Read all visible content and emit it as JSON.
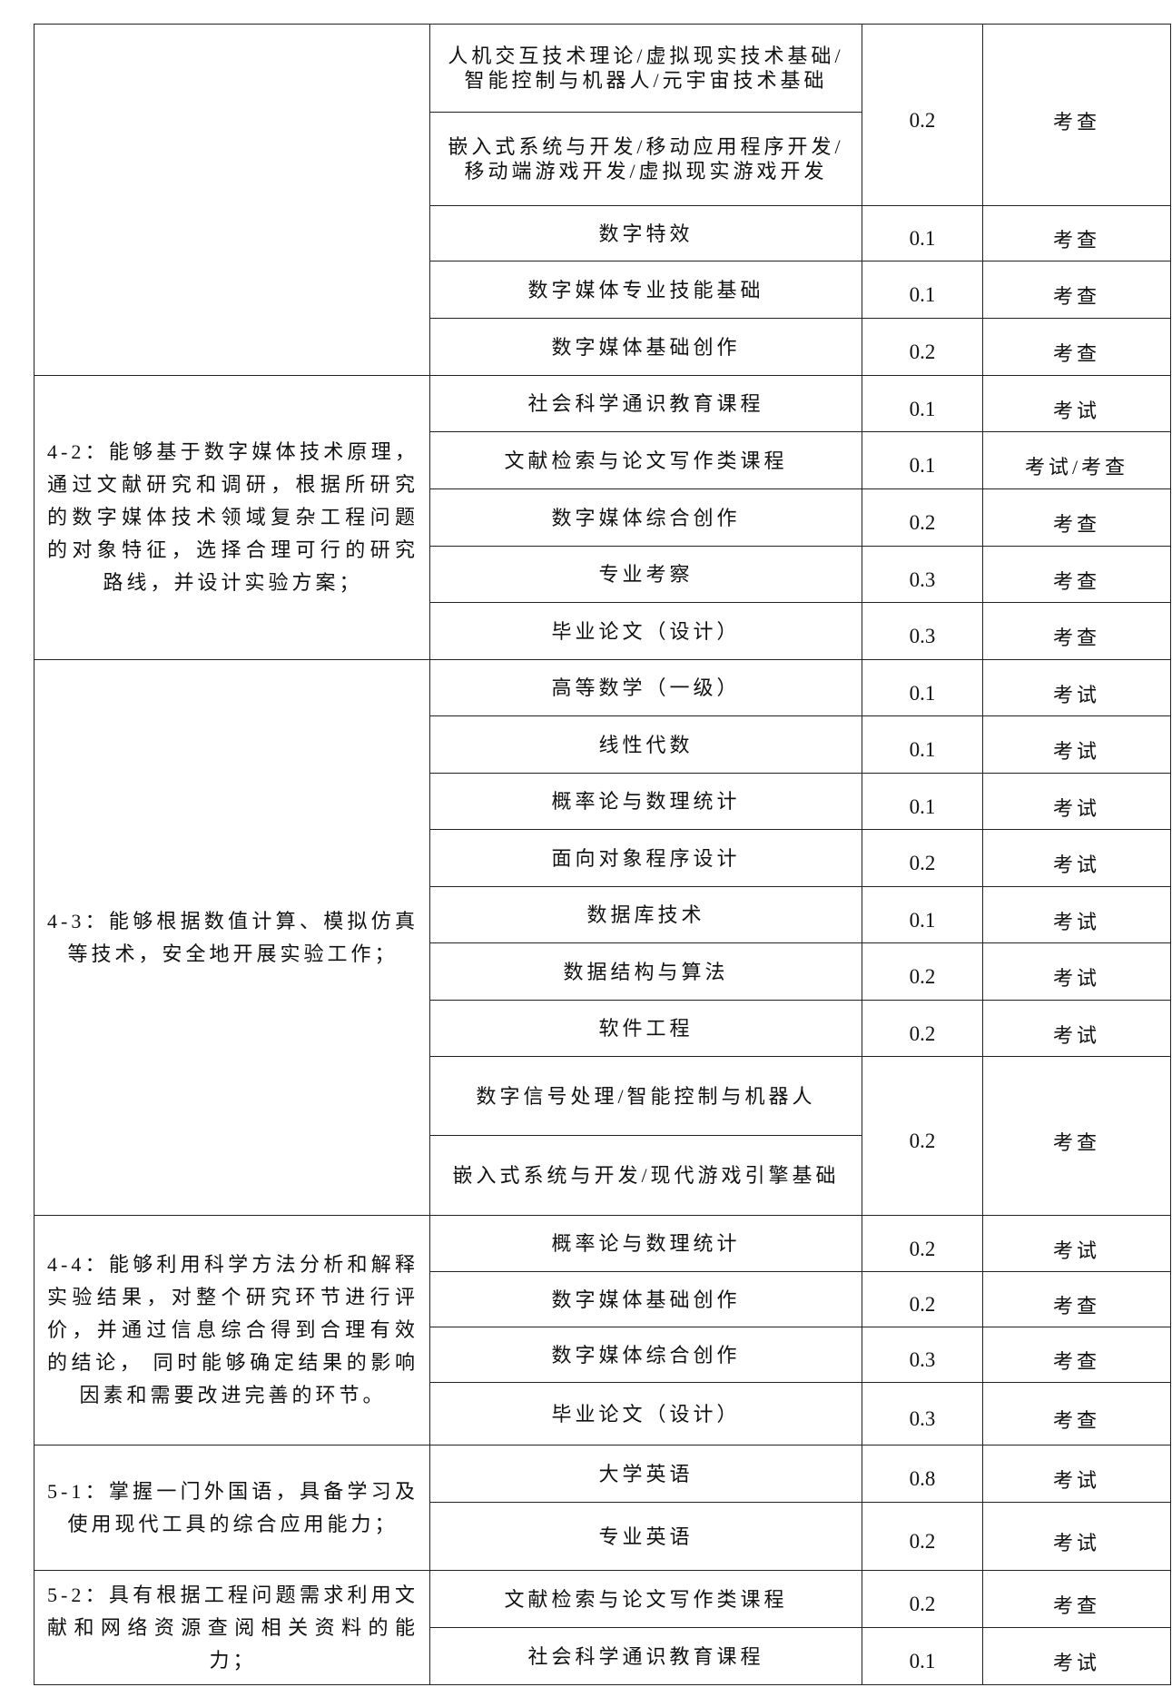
{
  "groups": [
    {
      "indicator": "",
      "courses": [
        {
          "names": [
            "人机交互技术理论/虚拟现实技术基础/智能控制与机器人/元宇宙技术基础",
            "嵌入式系统与开发/移动应用程序开发/移动端游戏开发/虚拟现实游戏开发"
          ],
          "weight": "0.2",
          "method": "考查"
        },
        {
          "names": [
            "数字特效"
          ],
          "weight": "0.1",
          "method": "考查"
        },
        {
          "names": [
            "数字媒体专业技能基础"
          ],
          "weight": "0.1",
          "method": "考查"
        },
        {
          "names": [
            "数字媒体基础创作"
          ],
          "weight": "0.2",
          "method": "考查"
        }
      ]
    },
    {
      "indicator": "4-2：能够基于数字媒体技术原理，通过文献研究和调研，根据所研究的数字媒体技术领域复杂工程问题的对象特征，选择合理可行的研究路线，并设计实验方案；",
      "courses": [
        {
          "names": [
            "社会科学通识教育课程"
          ],
          "weight": "0.1",
          "method": "考试"
        },
        {
          "names": [
            "文献检索与论文写作类课程"
          ],
          "weight": "0.1",
          "method": "考试/考查"
        },
        {
          "names": [
            "数字媒体综合创作"
          ],
          "weight": "0.2",
          "method": "考查"
        },
        {
          "names": [
            "专业考察"
          ],
          "weight": "0.3",
          "method": "考查"
        },
        {
          "names": [
            "毕业论文（设计）"
          ],
          "weight": "0.3",
          "method": "考查"
        }
      ]
    },
    {
      "indicator": "4-3：能够根据数值计算、模拟仿真等技术，安全地开展实验工作；",
      "courses": [
        {
          "names": [
            "高等数学（一级）"
          ],
          "weight": "0.1",
          "method": "考试"
        },
        {
          "names": [
            "线性代数"
          ],
          "weight": "0.1",
          "method": "考试"
        },
        {
          "names": [
            "概率论与数理统计"
          ],
          "weight": "0.1",
          "method": "考试"
        },
        {
          "names": [
            "面向对象程序设计"
          ],
          "weight": "0.2",
          "method": "考试"
        },
        {
          "names": [
            "数据库技术"
          ],
          "weight": "0.1",
          "method": "考试"
        },
        {
          "names": [
            "数据结构与算法"
          ],
          "weight": "0.2",
          "method": "考试"
        },
        {
          "names": [
            "软件工程"
          ],
          "weight": "0.2",
          "method": "考试"
        },
        {
          "names": [
            "数字信号处理/智能控制与机器人",
            "嵌入式系统与开发/现代游戏引擎基础"
          ],
          "weight": "0.2",
          "method": "考查"
        }
      ]
    },
    {
      "indicator": "4-4：能够利用科学方法分析和解释实验结果，对整个研究环节进行评价，并通过信息综合得到合理有效的结论， 同时能够确定结果的影响因素和需要改进完善的环节。",
      "courses": [
        {
          "names": [
            "概率论与数理统计"
          ],
          "weight": "0.2",
          "method": "考试"
        },
        {
          "names": [
            "数字媒体基础创作"
          ],
          "weight": "0.2",
          "method": "考查"
        },
        {
          "names": [
            "数字媒体综合创作"
          ],
          "weight": "0.3",
          "method": "考查"
        },
        {
          "names": [
            "毕业论文（设计）"
          ],
          "weight": "0.3",
          "method": "考查"
        }
      ]
    },
    {
      "indicator": "5-1：掌握一门外国语，具备学习及使用现代工具的综合应用能力；",
      "courses": [
        {
          "names": [
            "大学英语"
          ],
          "weight": "0.8",
          "method": "考试"
        },
        {
          "names": [
            "专业英语"
          ],
          "weight": "0.2",
          "method": "考试"
        }
      ]
    },
    {
      "indicator": "5-2：具有根据工程问题需求利用文献和网络资源查阅相关资料的能力；",
      "courses": [
        {
          "names": [
            "文献检索与论文写作类课程"
          ],
          "weight": "0.2",
          "method": "考查"
        },
        {
          "names": [
            "社会科学通识教育课程"
          ],
          "weight": "0.1",
          "method": "考试"
        }
      ]
    }
  ]
}
